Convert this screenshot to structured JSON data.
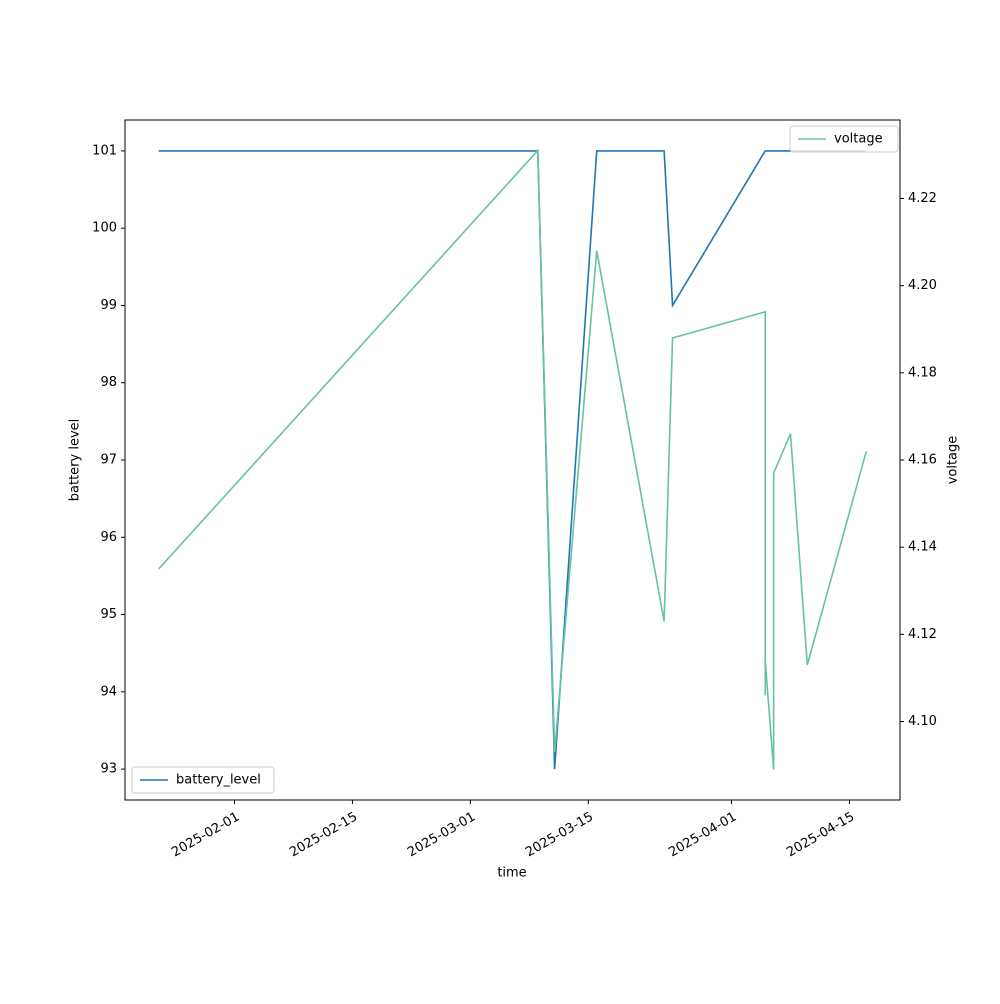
{
  "chart_data": {
    "type": "line",
    "xlabel": "time",
    "ylabel": "battery level",
    "y2label": "voltage",
    "xlim": [
      "2025-01-19",
      "2025-04-21"
    ],
    "xticks": [
      "2025-02-01",
      "2025-02-15",
      "2025-03-01",
      "2025-03-15",
      "2025-04-01",
      "2025-04-15"
    ],
    "ylim": [
      92.6,
      101.4
    ],
    "yticks": [
      93,
      94,
      95,
      96,
      97,
      98,
      99,
      100,
      101
    ],
    "y2lim": [
      4.082,
      4.238
    ],
    "y2ticks": [
      {
        "value": 4.1,
        "label": "4.10"
      },
      4.12,
      4.14,
      4.16,
      4.18,
      {
        "value": 4.2,
        "label": "4.20"
      },
      4.22
    ],
    "series": [
      {
        "name": "battery_level",
        "color": "#1f77b4",
        "legend": "lower left",
        "x": [
          "2025-01-23",
          "2025-03-09",
          "2025-03-11",
          "2025-03-16",
          "2025-03-24",
          "2025-03-25",
          "2025-04-05",
          "2025-04-17"
        ],
        "values": [
          101,
          101,
          93,
          101,
          101,
          99,
          101,
          101
        ]
      },
      {
        "name": "voltage",
        "color": "#66c2a5",
        "axis": "y2",
        "legend": "upper right",
        "x": [
          "2025-01-23",
          "2025-03-09",
          "2025-03-11",
          "2025-03-16",
          "2025-03-24",
          "2025-03-25",
          "2025-04-05",
          "2025-04-05",
          "2025-04-05",
          "2025-04-06",
          "2025-04-06",
          "2025-04-08",
          "2025-04-10",
          "2025-04-17"
        ],
        "values": [
          4.135,
          4.231,
          4.093,
          4.208,
          4.123,
          4.188,
          4.194,
          4.106,
          4.114,
          4.089,
          4.157,
          4.166,
          4.113,
          4.162
        ]
      }
    ]
  }
}
